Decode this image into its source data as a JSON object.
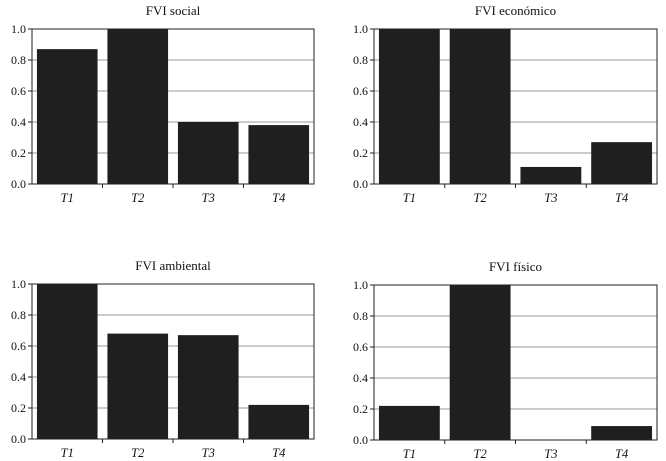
{
  "chart_data": [
    {
      "type": "bar",
      "title": "FVI social",
      "categories": [
        "T1",
        "T2",
        "T3",
        "T4"
      ],
      "values": [
        0.87,
        1.0,
        0.4,
        0.38
      ],
      "ylim": [
        0,
        1.0
      ],
      "yticks": [
        "0.0",
        "0.2",
        "0.4",
        "0.6",
        "0.8",
        "1.0"
      ],
      "grid": true
    },
    {
      "type": "bar",
      "title": "FVI económico",
      "categories": [
        "T1",
        "T2",
        "T3",
        "T4"
      ],
      "values": [
        1.0,
        1.0,
        0.11,
        0.27
      ],
      "ylim": [
        0,
        1.0
      ],
      "yticks": [
        "0.0",
        "0.2",
        "0.4",
        "0.6",
        "0.8",
        "1.0"
      ],
      "grid": true
    },
    {
      "type": "bar",
      "title": "FVI ambiental",
      "categories": [
        "T1",
        "T2",
        "T3",
        "T4"
      ],
      "values": [
        1.0,
        0.68,
        0.67,
        0.22
      ],
      "ylim": [
        0,
        1.0
      ],
      "yticks": [
        "0.0",
        "0.2",
        "0.4",
        "0.6",
        "0.8",
        "1.0"
      ],
      "grid": true
    },
    {
      "type": "bar",
      "title": "FVI físico",
      "categories": [
        "T1",
        "T2",
        "T3",
        "T4"
      ],
      "values": [
        0.22,
        1.0,
        0.0,
        0.09
      ],
      "ylim": [
        0,
        1.0
      ],
      "yticks": [
        "0.0",
        "0.2",
        "0.4",
        "0.6",
        "0.8",
        "1.0"
      ],
      "grid": true
    }
  ],
  "colors": {
    "bar": "#1f1f1f",
    "grid": "#9a9a9a",
    "axis": "#222222"
  }
}
